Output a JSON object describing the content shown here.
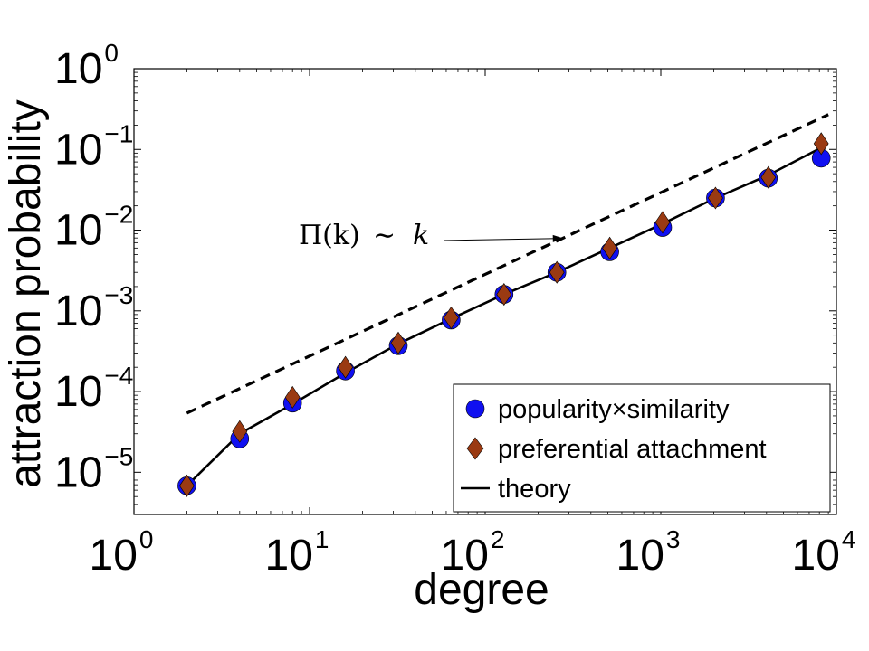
{
  "chart_data": {
    "type": "scatter",
    "xlabel": "degree",
    "ylabel": "attraction probability",
    "xscale": "log",
    "yscale": "log",
    "xlim": [
      1,
      10000
    ],
    "ylim": [
      3e-06,
      1
    ],
    "x_ticks": [
      {
        "value": 1,
        "base": "10",
        "exp": "0"
      },
      {
        "value": 10,
        "base": "10",
        "exp": "1"
      },
      {
        "value": 100,
        "base": "10",
        "exp": "2"
      },
      {
        "value": 1000,
        "base": "10",
        "exp": "3"
      },
      {
        "value": 10000,
        "base": "10",
        "exp": "4"
      }
    ],
    "y_ticks": [
      {
        "value": 1e-05,
        "base": "10",
        "exp": "−5"
      },
      {
        "value": 0.0001,
        "base": "10",
        "exp": "−4"
      },
      {
        "value": 0.001,
        "base": "10",
        "exp": "−3"
      },
      {
        "value": 0.01,
        "base": "10",
        "exp": "−2"
      },
      {
        "value": 0.1,
        "base": "10",
        "exp": "−1"
      },
      {
        "value": 1,
        "base": "10",
        "exp": "0"
      }
    ],
    "grid": false,
    "legend_position": "bottom-right",
    "series": [
      {
        "name": "popularity×similarity",
        "marker": "circle",
        "color": "#1010f0",
        "x": [
          2,
          4,
          8,
          16,
          32,
          64,
          128,
          256,
          512,
          1024,
          2048,
          4096,
          8192
        ],
        "y": [
          6.8e-06,
          2.6e-05,
          7.2e-05,
          0.00018,
          0.00037,
          0.00077,
          0.0016,
          0.003,
          0.0054,
          0.0108,
          0.025,
          0.044,
          0.078
        ]
      },
      {
        "name": "preferential attachment",
        "marker": "diamond",
        "color": "#9a3a12",
        "x": [
          2,
          4,
          8,
          16,
          32,
          64,
          128,
          256,
          512,
          1024,
          2048,
          4096,
          8192
        ],
        "y": [
          6.8e-06,
          3.2e-05,
          8.5e-05,
          0.0002,
          0.0004,
          0.00082,
          0.0016,
          0.003,
          0.006,
          0.0125,
          0.025,
          0.045,
          0.118
        ]
      },
      {
        "name": "theory",
        "style": "solid-line",
        "color": "#000000",
        "x": [
          2,
          4,
          8,
          16,
          32,
          64,
          128,
          256,
          512,
          1024,
          2048,
          4096,
          8192
        ],
        "y": [
          6.8e-06,
          3e-05,
          7e-05,
          0.00017,
          0.00039,
          0.0008,
          0.0016,
          0.003,
          0.006,
          0.012,
          0.025,
          0.048,
          0.105
        ]
      }
    ],
    "reference_line": {
      "style": "dashed",
      "color": "#000000",
      "x": [
        2,
        9000
      ],
      "y": [
        5.4e-05,
        0.27
      ]
    },
    "annotation": {
      "text_func": "Π(k)",
      "text_rel": "∼",
      "text_var": "k",
      "arrow_target": {
        "x": 280,
        "y": 0.0079
      }
    },
    "legend": {
      "entries": [
        "popularity×similarity",
        "preferential attachment",
        "theory"
      ]
    }
  }
}
